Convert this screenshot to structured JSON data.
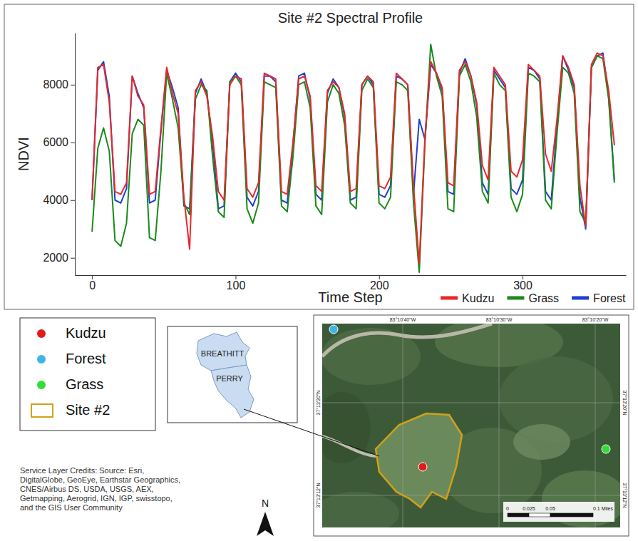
{
  "chart_data": {
    "type": "line",
    "title": "Site #2 Spectral Profile",
    "x_label": "Time Step",
    "y_label": "NDVI",
    "x": [
      0,
      4,
      8,
      12,
      16,
      20,
      24,
      28,
      32,
      36,
      40,
      44,
      48,
      52,
      56,
      60,
      64,
      68,
      72,
      76,
      80,
      84,
      88,
      92,
      96,
      100,
      104,
      108,
      112,
      116,
      120,
      124,
      128,
      132,
      136,
      140,
      144,
      148,
      152,
      156,
      160,
      164,
      168,
      172,
      176,
      180,
      184,
      188,
      192,
      196,
      200,
      204,
      208,
      212,
      216,
      220,
      224,
      228,
      232,
      236,
      240,
      244,
      248,
      252,
      256,
      260,
      264,
      268,
      272,
      276,
      280,
      284,
      288,
      292,
      296,
      300,
      304,
      308,
      312,
      316,
      320,
      324,
      328,
      332,
      336,
      340,
      344,
      348,
      352,
      356,
      360,
      364
    ],
    "series": [
      {
        "name": "Kudzu",
        "color": "#e8282b",
        "values": [
          4000,
          8600,
          8700,
          7400,
          4300,
          4200,
          4600,
          8300,
          7600,
          7300,
          4200,
          4300,
          6500,
          8600,
          7700,
          7000,
          4100,
          2300,
          7800,
          8100,
          7600,
          6200,
          4300,
          4000,
          8000,
          8300,
          8200,
          4400,
          4100,
          4600,
          8400,
          8300,
          8200,
          4300,
          4200,
          6000,
          8200,
          8300,
          7600,
          4500,
          4300,
          7800,
          8100,
          7900,
          7000,
          4300,
          4400,
          8000,
          8300,
          8100,
          4500,
          4400,
          4800,
          8400,
          8200,
          8000,
          4500,
          1800,
          6200,
          8800,
          8400,
          7900,
          4600,
          4500,
          8500,
          8800,
          8300,
          7400,
          5200,
          4700,
          8600,
          8300,
          8000,
          5000,
          4800,
          5400,
          8700,
          8500,
          8300,
          5600,
          5000,
          6800,
          9000,
          8600,
          8000,
          4500,
          3100,
          8700,
          9100,
          9000,
          7800,
          5900
        ]
      },
      {
        "name": "Grass",
        "color": "#1a8a1a",
        "values": [
          2900,
          5800,
          6500,
          5700,
          2600,
          2400,
          3200,
          6300,
          6800,
          6600,
          2700,
          2600,
          5000,
          8400,
          7500,
          6500,
          3900,
          3500,
          7500,
          8000,
          7800,
          5500,
          3600,
          3400,
          8100,
          8300,
          8000,
          3700,
          3200,
          3900,
          8100,
          8000,
          7900,
          3800,
          3600,
          5500,
          8000,
          8100,
          7200,
          3800,
          3500,
          7400,
          8000,
          7700,
          6600,
          3900,
          3700,
          7800,
          8200,
          7900,
          3900,
          3700,
          4100,
          8100,
          8000,
          7800,
          3900,
          1500,
          6000,
          9400,
          8300,
          7600,
          3700,
          3600,
          8300,
          8700,
          8100,
          6900,
          4300,
          3900,
          8400,
          8000,
          7800,
          4100,
          3600,
          4200,
          8400,
          8300,
          8100,
          4000,
          3700,
          6300,
          8600,
          8400,
          7700,
          3600,
          3200,
          8600,
          9000,
          8900,
          7500,
          4600
        ]
      },
      {
        "name": "Forest",
        "color": "#1f3fd0",
        "values": [
          4000,
          8500,
          8800,
          7600,
          4000,
          3900,
          4400,
          8300,
          7700,
          7200,
          3900,
          4000,
          6400,
          8500,
          7900,
          7200,
          3800,
          3700,
          7700,
          8200,
          7700,
          6000,
          3700,
          3800,
          8100,
          8400,
          8100,
          4100,
          3800,
          4300,
          8300,
          8300,
          8100,
          4000,
          3900,
          5900,
          8300,
          8400,
          7500,
          4200,
          4000,
          7700,
          8200,
          7900,
          6900,
          4000,
          4100,
          8000,
          8300,
          8000,
          4200,
          4100,
          4500,
          8300,
          8200,
          8000,
          4200,
          6800,
          6100,
          8700,
          8400,
          7800,
          4300,
          4200,
          8400,
          8900,
          8300,
          7300,
          4600,
          4200,
          8500,
          8200,
          7900,
          4400,
          4200,
          4700,
          8600,
          8500,
          8200,
          4300,
          4000,
          6600,
          9000,
          8500,
          7900,
          4100,
          3000,
          8600,
          9000,
          9100,
          7600,
          4700
        ]
      }
    ],
    "xlim": [
      -12,
      372
    ],
    "xticks": [
      0,
      100,
      200,
      300
    ],
    "ylim": [
      1400,
      9800
    ],
    "yticks": [
      2000,
      4000,
      6000,
      8000
    ],
    "grid": false,
    "legend": "bottom"
  },
  "map": {
    "legend": [
      {
        "label": "Kudzu",
        "color": "#e31a1c",
        "marker": "circle"
      },
      {
        "label": "Forest",
        "color": "#3cb6e6",
        "marker": "circle"
      },
      {
        "label": "Grass",
        "color": "#33dd33",
        "marker": "circle"
      },
      {
        "label": "Site #2",
        "color": "#d4a017",
        "marker": "outline"
      }
    ],
    "counties": [
      "BREATHITT",
      "PERRY"
    ],
    "credits": [
      "Service Layer Credits: Source: Esri,",
      "DigitalGlobe, GeoEye, Earthstar Geographics,",
      "CNES/Airbus DS, USDA, USGS, AEX,",
      "Getmapping, Aerogrid, IGN, IGP, swisstopo,",
      "and the GIS User Community"
    ],
    "north": "N",
    "coordinates": {
      "top": [
        "83°10'40\"W",
        "83°10'30\"W",
        "83°10'20\"W"
      ],
      "left": [
        "37°13'20\"N",
        "37°13'12\"N"
      ],
      "right": [
        "37°13'20\"N",
        "37°13'12\"N"
      ]
    },
    "scale_bar": [
      "0",
      "0.025",
      "0.05",
      "0.1 Miles"
    ]
  }
}
